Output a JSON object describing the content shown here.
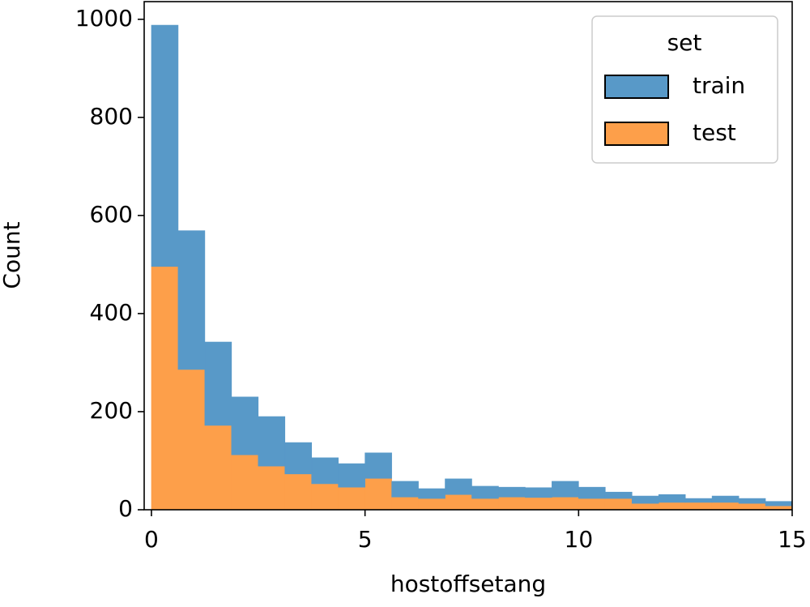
{
  "chart_data": {
    "type": "histogram",
    "stacked": true,
    "xlabel": "hostoffsetang",
    "ylabel": "Count",
    "bins": [
      0,
      0.625,
      1.25,
      1.875,
      2.5,
      3.125,
      3.75,
      4.375,
      5,
      5.625,
      6.25,
      6.875,
      7.5,
      8.125,
      8.75,
      9.375,
      10,
      10.625,
      11.25,
      11.875,
      12.5,
      13.125,
      13.75,
      14.375,
      15
    ],
    "series": [
      {
        "name": "train",
        "color": "#5899c8",
        "values": [
          492,
          283,
          170,
          118,
          101,
          64,
          53,
          48,
          52,
          32,
          20,
          32,
          25,
          20,
          20,
          32,
          23,
          13,
          15,
          16,
          8,
          13,
          10,
          9
        ]
      },
      {
        "name": "test",
        "color": "#fd9f4a",
        "values": [
          496,
          286,
          172,
          112,
          89,
          73,
          53,
          46,
          64,
          26,
          23,
          31,
          23,
          26,
          25,
          26,
          23,
          23,
          13,
          15,
          15,
          15,
          13,
          8
        ]
      }
    ],
    "legend_title": "set",
    "legend_position": "upper right",
    "xlim": [
      -0.17,
      15
    ],
    "ylim": [
      0,
      1036
    ],
    "xticks": [
      0,
      5,
      10,
      15
    ],
    "yticks": [
      0,
      200,
      400,
      600,
      800,
      1000
    ]
  }
}
